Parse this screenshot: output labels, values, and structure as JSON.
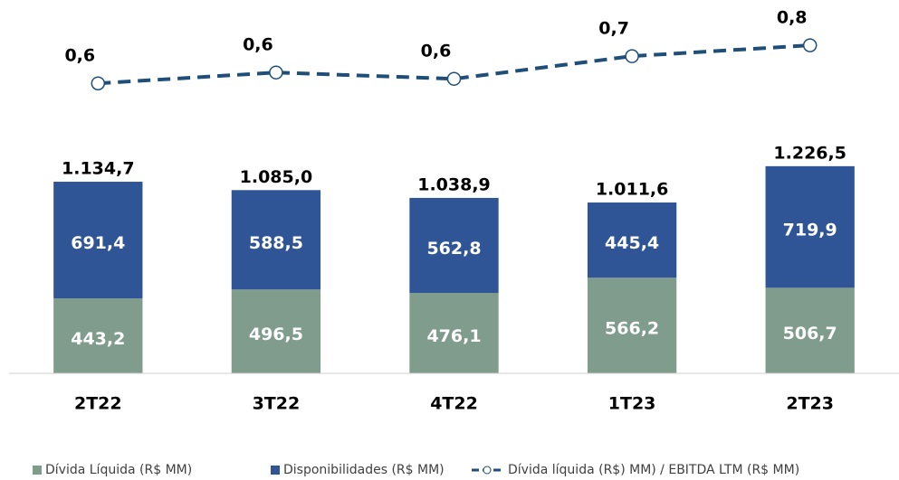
{
  "chart_data": {
    "type": "stacked_bar_line",
    "categories": [
      "2T22",
      "3T22",
      "4T22",
      "1T23",
      "2T23"
    ],
    "series": [
      {
        "name": "Dívida Líquida (R$ MM)",
        "color": "#7f9c8d",
        "values": [
          443.2,
          496.5,
          476.1,
          566.2,
          506.7
        ],
        "value_labels": [
          "443,2",
          "496,5",
          "476,1",
          "566,2",
          "506,7"
        ]
      },
      {
        "name": "Disponibilidades (R$ MM)",
        "color": "#2f5597",
        "values": [
          691.4,
          588.5,
          562.8,
          445.4,
          719.9
        ],
        "value_labels": [
          "691,4",
          "588,5",
          "562,8",
          "445,4",
          "719,9"
        ]
      },
      {
        "name": "Dívida líquida (R$) MM) / EBITDA LTM (R$ MM)",
        "color": "#1f4e79",
        "type": "line",
        "axis": "y2",
        "values": [
          0.57,
          0.63,
          0.595,
          0.72,
          0.78
        ],
        "value_labels": [
          "0,6",
          "0,6",
          "0,6",
          "0,7",
          "0,8"
        ]
      }
    ],
    "totals": [
      1134.7,
      1085.0,
      1038.9,
      1011.6,
      1226.5
    ],
    "total_labels": [
      "1.134,7",
      "1.085,0",
      "1.038,9",
      "1.011,6",
      "1.226,5"
    ],
    "ylim": [
      0,
      2200
    ],
    "y2lim": [
      -1.03,
      1.02
    ],
    "legend": "bottom"
  }
}
